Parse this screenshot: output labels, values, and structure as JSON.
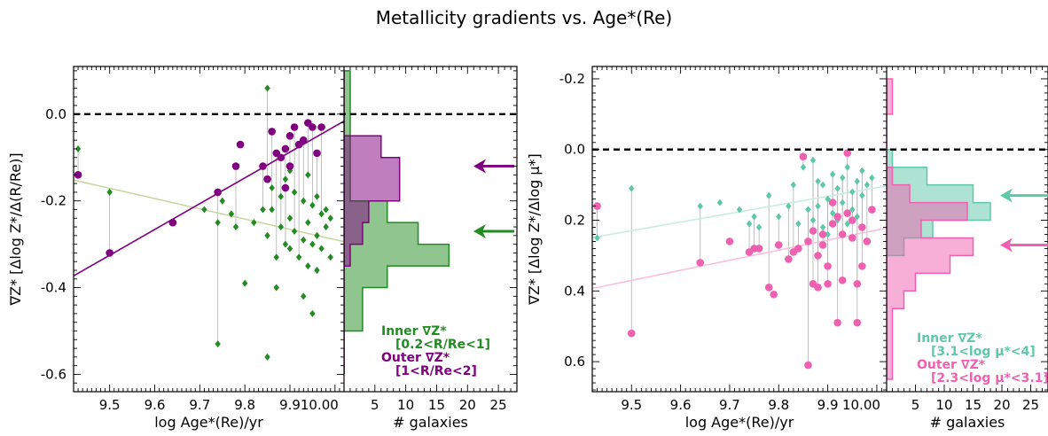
{
  "figure": {
    "title": "Metallicity gradients vs. Age*(Re)"
  },
  "colors": {
    "inner_left": "#228b22",
    "outer_left": "#800080",
    "inner_right": "#5ec8a8",
    "outer_right": "#f060b0",
    "fit_inner_left": "#c8d8a0",
    "fit_inner_right": "#c8ece0",
    "fit_outer_right": "#f8c0dc"
  },
  "chart_data": [
    {
      "type": "scatter",
      "panel": "left",
      "xlabel": "log Age*(Re)/yr",
      "ylabel": "∇Z* [Δlog Z*/Δ(R/Re)]",
      "xlim": [
        9.42,
        10.02
      ],
      "ylim": [
        -0.64,
        0.11
      ],
      "y_inverted": false,
      "x_ticks": [
        "9.5",
        "9.6",
        "9.7",
        "9.8",
        "9.9",
        "10.00"
      ],
      "y_ticks": [
        {
          "value": 0.0,
          "label": "0.0"
        },
        {
          "value": -0.2,
          "label": "-0.2"
        },
        {
          "value": -0.4,
          "label": "-0.4"
        },
        {
          "value": -0.6,
          "label": "-0.6"
        }
      ],
      "reference_line": 0.0,
      "series": [
        {
          "name": "Inner ∇Z*",
          "sub": "[0.2<R/Re<1]",
          "marker": "diamond",
          "color_key": "inner_left",
          "x": [
            9.43,
            9.5,
            9.71,
            9.74,
            9.74,
            9.75,
            9.77,
            9.78,
            9.8,
            9.82,
            9.84,
            9.85,
            9.85,
            9.85,
            9.86,
            9.86,
            9.87,
            9.87,
            9.88,
            9.88,
            9.89,
            9.89,
            9.9,
            9.9,
            9.9,
            9.91,
            9.91,
            9.92,
            9.92,
            9.93,
            9.93,
            9.93,
            9.94,
            9.94,
            9.94,
            9.95,
            9.95,
            9.95,
            9.96,
            9.96,
            9.96,
            9.97,
            9.97,
            9.98,
            9.98,
            9.99,
            9.99
          ],
          "y": [
            -0.08,
            -0.18,
            -0.22,
            -0.53,
            -0.25,
            -0.2,
            -0.23,
            -0.26,
            -0.39,
            -0.25,
            -0.22,
            0.06,
            -0.56,
            -0.28,
            -0.22,
            -0.17,
            -0.33,
            -0.4,
            -0.26,
            -0.19,
            -0.3,
            -0.15,
            -0.13,
            -0.24,
            -0.31,
            -0.27,
            -0.18,
            -0.33,
            -0.07,
            -0.2,
            -0.29,
            -0.42,
            -0.14,
            -0.25,
            -0.35,
            -0.21,
            -0.3,
            -0.46,
            -0.19,
            -0.28,
            -0.36,
            -0.23,
            -0.31,
            -0.26,
            -0.22,
            -0.24,
            -0.33
          ]
        },
        {
          "name": "Outer ∇Z*",
          "sub": "[1<R/Re<2]",
          "marker": "circle",
          "color_key": "outer_left",
          "x": [
            9.43,
            9.5,
            9.64,
            9.74,
            9.78,
            9.79,
            9.84,
            9.85,
            9.86,
            9.87,
            9.88,
            9.89,
            9.89,
            9.9,
            9.9,
            9.91,
            9.92,
            9.93,
            9.94,
            9.95,
            9.96,
            9.97
          ],
          "y": [
            -0.14,
            -0.32,
            -0.25,
            -0.18,
            -0.12,
            -0.07,
            -0.12,
            -0.15,
            -0.04,
            -0.09,
            -0.1,
            -0.08,
            -0.17,
            -0.05,
            -0.12,
            -0.03,
            -0.07,
            -0.06,
            -0.02,
            -0.03,
            -0.09,
            -0.03
          ]
        }
      ],
      "fits": [
        {
          "color_key": "fit_inner_left",
          "x": [
            9.42,
            10.02
          ],
          "y": [
            -0.152,
            -0.294
          ]
        },
        {
          "color_key": "outer_left",
          "x": [
            9.42,
            10.02
          ],
          "y": [
            -0.373,
            -0.016
          ]
        }
      ],
      "hist": {
        "xlabel": "# galaxies",
        "xlim": [
          0,
          28
        ],
        "x_ticks": [
          "5",
          "10",
          "15",
          "20",
          "25"
        ],
        "bin_edges": [
          0.1,
          0.05,
          0.0,
          -0.05,
          -0.1,
          -0.15,
          -0.2,
          -0.25,
          -0.3,
          -0.35,
          -0.4,
          -0.45,
          -0.5,
          -0.55,
          -0.6
        ],
        "inner_counts": [
          1,
          1,
          1,
          1,
          1,
          1,
          7,
          12,
          17,
          7,
          3,
          3,
          0,
          0
        ],
        "outer_counts": [
          0,
          0,
          0,
          6,
          9,
          9,
          4,
          3,
          1,
          0,
          0,
          0,
          0,
          0
        ]
      },
      "arrows": [
        {
          "color_key": "outer_left",
          "y": -0.12
        },
        {
          "color_key": "inner_left",
          "y": -0.27
        }
      ]
    },
    {
      "type": "scatter",
      "panel": "right",
      "xlabel": "log Age*(Re)/yr",
      "ylabel": "∇Z* [Δlog Z*/Δlog μ*]",
      "xlim": [
        9.42,
        10.02
      ],
      "ylim": [
        -0.235,
        0.685
      ],
      "y_inverted": true,
      "x_ticks": [
        "9.5",
        "9.6",
        "9.7",
        "9.8",
        "9.9",
        "10.00"
      ],
      "y_ticks": [
        {
          "value": -0.2,
          "label": "-0.2"
        },
        {
          "value": 0.0,
          "label": "0.0"
        },
        {
          "value": 0.2,
          "label": "0.2"
        },
        {
          "value": 0.4,
          "label": "0.4"
        },
        {
          "value": 0.6,
          "label": "0.6"
        }
      ],
      "reference_line": 0.0,
      "series": [
        {
          "name": "Inner ∇Z*",
          "sub": "[3.1<log μ*<4]",
          "marker": "diamond",
          "color_key": "inner_right",
          "x": [
            9.43,
            9.5,
            9.64,
            9.68,
            9.72,
            9.74,
            9.75,
            9.76,
            9.78,
            9.8,
            9.82,
            9.83,
            9.84,
            9.85,
            9.86,
            9.86,
            9.87,
            9.87,
            9.88,
            9.88,
            9.89,
            9.89,
            9.9,
            9.9,
            9.91,
            9.91,
            9.92,
            9.92,
            9.93,
            9.93,
            9.94,
            9.94,
            9.95,
            9.95,
            9.96,
            9.96,
            9.97,
            9.97,
            9.98,
            9.99
          ],
          "y": [
            0.25,
            0.11,
            0.16,
            0.15,
            0.17,
            0.21,
            0.19,
            0.22,
            0.13,
            0.19,
            0.16,
            0.1,
            0.21,
            0.05,
            0.17,
            0.26,
            0.03,
            0.2,
            0.09,
            0.16,
            0.22,
            0.1,
            0.14,
            0.24,
            0.07,
            0.18,
            0.11,
            0.2,
            0.08,
            0.15,
            0.05,
            0.21,
            0.12,
            0.17,
            0.09,
            0.19,
            0.06,
            0.13,
            0.1,
            0.08
          ]
        },
        {
          "name": "Outer ∇Z*",
          "sub": "[2.3<log μ*<3.1]",
          "marker": "circle",
          "color_key": "outer_right",
          "x": [
            9.43,
            9.5,
            9.64,
            9.7,
            9.74,
            9.75,
            9.76,
            9.78,
            9.79,
            9.8,
            9.82,
            9.83,
            9.84,
            9.85,
            9.86,
            9.86,
            9.87,
            9.87,
            9.88,
            9.88,
            9.89,
            9.89,
            9.9,
            9.9,
            9.91,
            9.91,
            9.92,
            9.92,
            9.93,
            9.93,
            9.94,
            9.94,
            9.95,
            9.95,
            9.96,
            9.96,
            9.97,
            9.97,
            9.98,
            9.99
          ],
          "y": [
            0.16,
            0.52,
            0.32,
            0.26,
            0.29,
            0.28,
            0.28,
            0.39,
            0.41,
            0.27,
            0.31,
            0.29,
            0.28,
            0.02,
            0.61,
            0.26,
            0.38,
            0.23,
            0.3,
            0.39,
            0.24,
            0.27,
            0.33,
            0.38,
            0.15,
            0.21,
            0.49,
            0.19,
            0.37,
            0.24,
            0.18,
            0.01,
            0.2,
            0.25,
            0.38,
            0.49,
            0.22,
            0.33,
            0.26,
            0.17
          ]
        }
      ],
      "fits": [
        {
          "color_key": "fit_inner_right",
          "x": [
            9.42,
            10.02
          ],
          "y": [
            0.249,
            0.103
          ]
        },
        {
          "color_key": "fit_outer_right",
          "x": [
            9.42,
            10.02
          ],
          "y": [
            0.393,
            0.222
          ]
        }
      ],
      "hist": {
        "xlabel": "# galaxies",
        "xlim": [
          0,
          28
        ],
        "x_ticks": [
          "5",
          "10",
          "15",
          "20",
          "25"
        ],
        "bin_edges": [
          -0.2,
          -0.15,
          -0.1,
          -0.05,
          0.0,
          0.05,
          0.1,
          0.15,
          0.2,
          0.25,
          0.3,
          0.35,
          0.4,
          0.45,
          0.5,
          0.55,
          0.6,
          0.65
        ],
        "inner_counts": [
          0,
          0,
          0,
          0,
          1,
          7,
          15,
          18,
          8,
          3,
          0,
          0,
          0,
          0,
          0,
          0,
          0
        ],
        "outer_counts": [
          1,
          1,
          0,
          0,
          0,
          1,
          4,
          14,
          6,
          15,
          11,
          5,
          3,
          1,
          1,
          1,
          1
        ]
      },
      "arrows": [
        {
          "color_key": "inner_right",
          "y": 0.13
        },
        {
          "color_key": "outer_right",
          "y": 0.27
        }
      ]
    }
  ]
}
